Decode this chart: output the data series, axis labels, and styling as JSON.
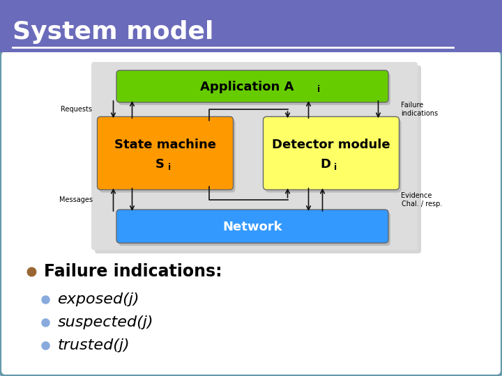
{
  "title": "System model",
  "title_bg": "#6B6BBB",
  "title_fg": "#ffffff",
  "slide_bg": "#ffffff",
  "border_color": "#6699AA",
  "diagram_bg": "#DDDDDD",
  "app_label": "Application A",
  "app_sub": "i",
  "app_color": "#66CC00",
  "sm_label1": "State machine",
  "sm_label2": "S",
  "sm_sub": "i",
  "sm_color": "#FF9900",
  "det_label1": "Detector module",
  "det_label2": "D",
  "det_sub": "i",
  "det_color": "#FFFF66",
  "net_label": "Network",
  "net_color": "#3399FF",
  "bullet_color": "#996633",
  "sub_bullet_color": "#88AADD",
  "bullet_main": "Failure indications:",
  "bullets_sub": [
    "exposed(j)",
    "suspected(j)",
    "trusted(j)"
  ],
  "arrow_color": "#111111",
  "label_requests": "Requests",
  "label_messages": "Messages",
  "label_failure": "Failure\nindications",
  "label_evidence": "Evidence\nChal. / resp."
}
